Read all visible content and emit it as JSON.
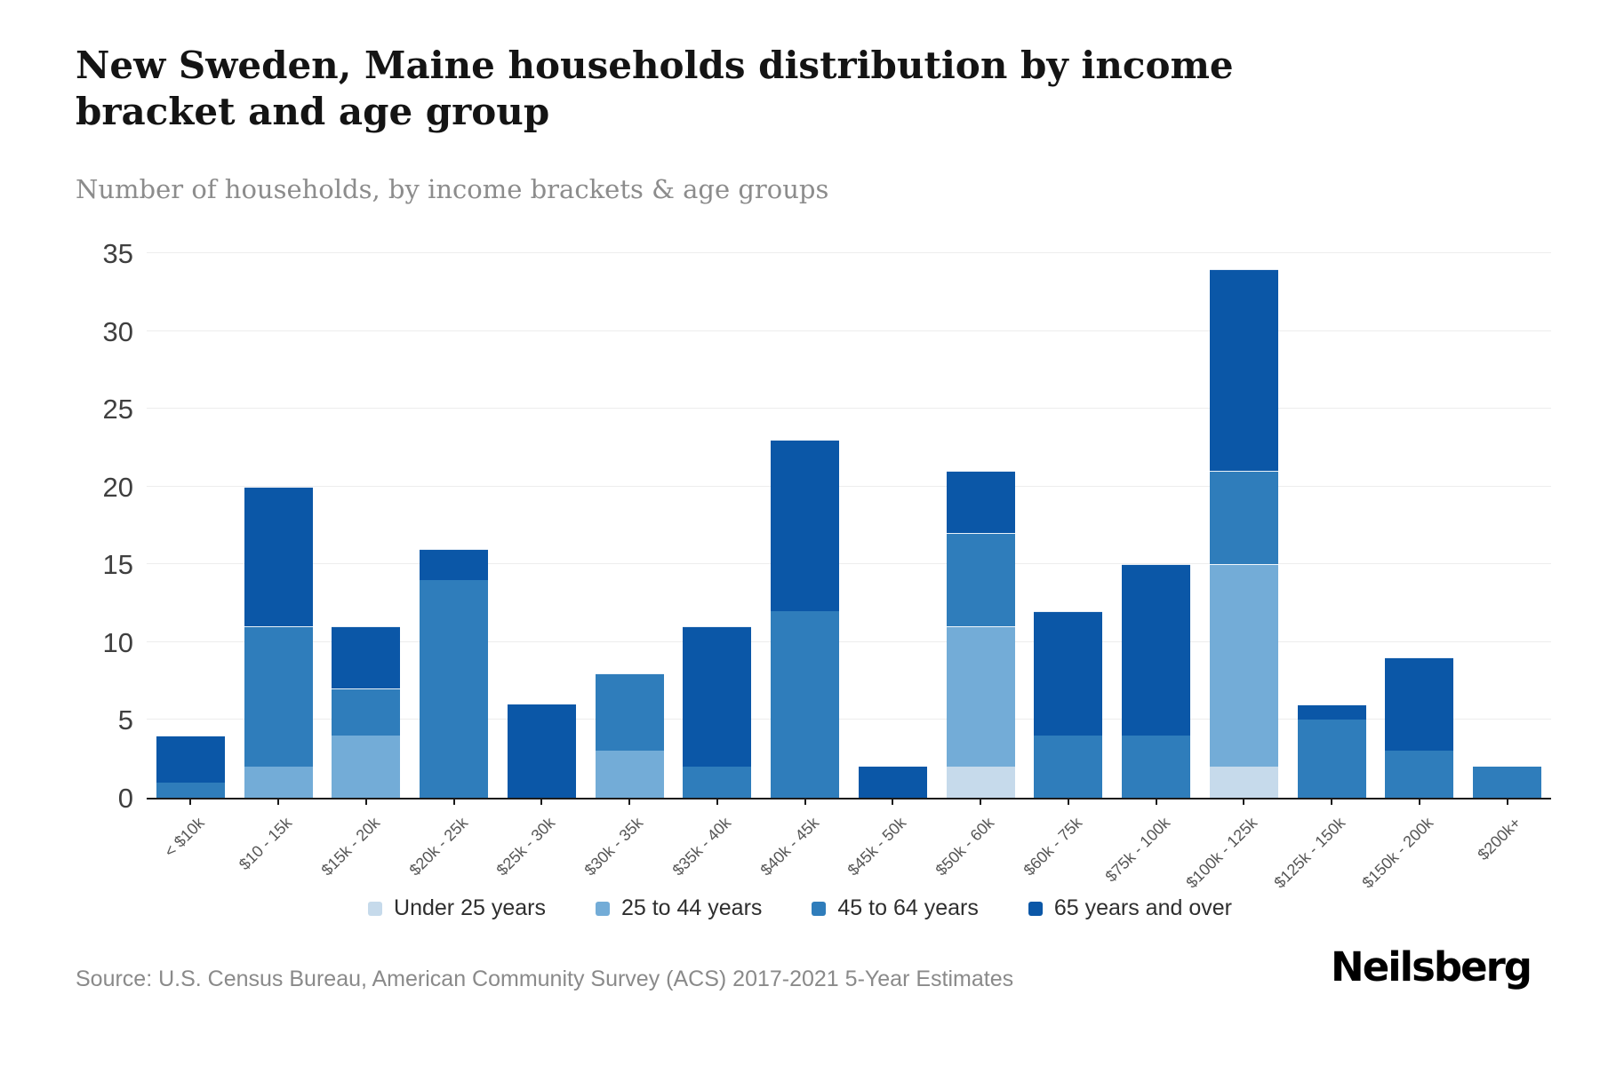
{
  "header": {
    "title": "New Sweden, Maine households distribution by income bracket and age group",
    "subtitle": "Number of households, by income brackets & age groups"
  },
  "footer": {
    "source": "Source: U.S. Census Bureau, American Community Survey (ACS) 2017-2021 5-Year Estimates",
    "logo": "Neilsberg"
  },
  "chart_data": {
    "type": "bar",
    "stacked": true,
    "title": "New Sweden, Maine households distribution by income bracket and age group",
    "subtitle": "Number of households, by income brackets & age groups",
    "xlabel": "",
    "ylabel": "",
    "ylim": [
      0,
      35
    ],
    "yticks": [
      0,
      5,
      10,
      15,
      20,
      25,
      30,
      35
    ],
    "grid": true,
    "legend_position": "bottom",
    "categories": [
      "< $10k",
      "$10 - 15k",
      "$15k - 20k",
      "$20k - 25k",
      "$25k - 30k",
      "$30k - 35k",
      "$35k - 40k",
      "$40k - 45k",
      "$45k - 50k",
      "$50k - 60k",
      "$60k - 75k",
      "$75k - 100k",
      "$100k - 125k",
      "$125k - 150k",
      "$150k - 200k",
      "$200k+"
    ],
    "series": [
      {
        "name": "Under 25 years",
        "color": "#c6daeb",
        "values": [
          0,
          0,
          0,
          0,
          0,
          0,
          0,
          0,
          0,
          2,
          0,
          0,
          2,
          0,
          0,
          0
        ]
      },
      {
        "name": "25 to 44 years",
        "color": "#73acd7",
        "values": [
          0,
          2,
          4,
          0,
          0,
          3,
          0,
          0,
          0,
          9,
          0,
          0,
          13,
          0,
          0,
          0
        ]
      },
      {
        "name": "45 to 64 years",
        "color": "#2f7dbb",
        "values": [
          1,
          9,
          3,
          14,
          0,
          5,
          2,
          12,
          0,
          6,
          4,
          4,
          6,
          5,
          3,
          2
        ]
      },
      {
        "name": "65 years and over",
        "color": "#0b57a7",
        "values": [
          3,
          9,
          4,
          2,
          6,
          0,
          9,
          11,
          2,
          4,
          8,
          11,
          13,
          1,
          6,
          0
        ]
      }
    ],
    "totals": [
      4,
      20,
      11,
      16,
      6,
      8,
      11,
      23,
      2,
      21,
      12,
      15,
      34,
      6,
      9,
      2
    ]
  }
}
